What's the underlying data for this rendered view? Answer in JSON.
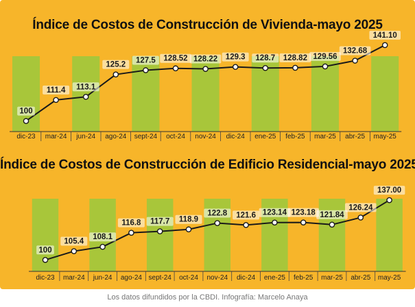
{
  "caption": "Los datos difundidos por la CBDI. Infografía: Marcelo Anaya",
  "colors": {
    "background": "#f7b52a",
    "column": "#a8c63a",
    "line": "#1a1a1a",
    "marker_fill": "#ffffff",
    "label_box": "#ffffff"
  },
  "chart_data": [
    {
      "type": "line",
      "title": "Índice de Costos de Construcción de Vivienda-mayo 2025",
      "categories": [
        "dic-23",
        "mar-24",
        "jun-24",
        "ago-24",
        "sept-24",
        "oct-24",
        "nov-24",
        "dic-24",
        "ene-25",
        "feb-25",
        "mar-25",
        "abr-25",
        "may-25"
      ],
      "values": [
        100,
        111.4,
        113.1,
        125.2,
        127.5,
        128.52,
        128.22,
        129.3,
        128.7,
        128.82,
        129.56,
        132.68,
        141.1
      ],
      "value_labels": [
        "100",
        "111.4",
        "113.1",
        "125.2",
        "127.5",
        "128.52",
        "128.22",
        "129.3",
        "128.7",
        "128.82",
        "129.56",
        "132.68",
        "141.10"
      ],
      "ylim": [
        98,
        144
      ],
      "grid": false,
      "legend": "none"
    },
    {
      "type": "line",
      "title": "Índice de Costos de Construcción de Edificio Residencial-mayo 2025",
      "categories": [
        "dic-23",
        "mar-24",
        "jun-24",
        "ago-24",
        "sept-24",
        "oct-24",
        "nov-24",
        "dic-24",
        "ene-25",
        "feb-25",
        "mar-25",
        "abr-25",
        "may-25"
      ],
      "values": [
        100,
        105.4,
        108.1,
        116.8,
        117.7,
        118.9,
        122.8,
        121.6,
        123.14,
        123.18,
        121.84,
        126.24,
        137
      ],
      "value_labels": [
        "100",
        "105.4",
        "108.1",
        "116.8",
        "117.7",
        "118.9",
        "122.8",
        "121.6",
        "123.14",
        "123.18",
        "121.84",
        "126.24",
        "137.00"
      ],
      "ylim": [
        98,
        140
      ],
      "grid": false,
      "legend": "none"
    }
  ]
}
